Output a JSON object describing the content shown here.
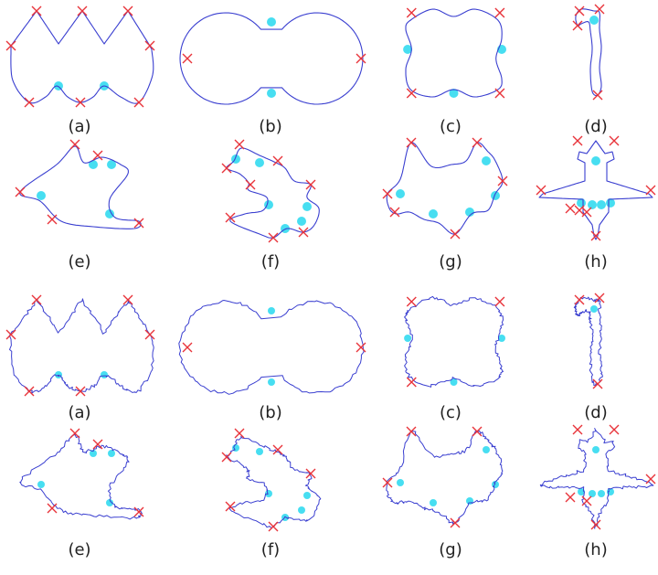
{
  "colors": {
    "contour": "#3a3fd0",
    "corner_marker": "#e8333a",
    "highlight": "#27d8ee",
    "label": "#222222"
  },
  "rows": [
    {
      "style": "clean",
      "labels": [
        "(a)",
        "(b)",
        "(c)",
        "(d)"
      ]
    },
    {
      "style": "clean",
      "labels": [
        "(e)",
        "(f)",
        "(g)",
        "(h)"
      ]
    },
    {
      "style": "noisy",
      "labels": [
        "(a)",
        "(b)",
        "(c)",
        "(d)"
      ]
    },
    {
      "style": "noisy",
      "labels": [
        "(e)",
        "(f)",
        "(g)",
        "(h)"
      ]
    }
  ]
}
